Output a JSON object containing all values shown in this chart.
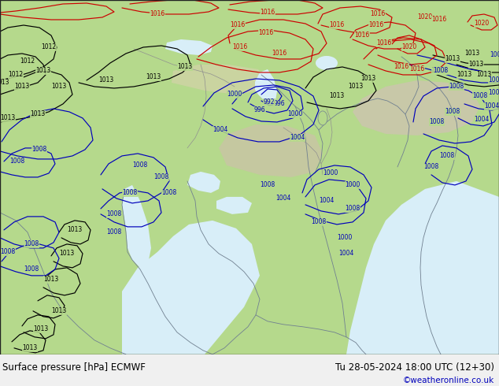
{
  "title_left": "Surface pressure [hPa] ECMWF",
  "title_right": "Tu 28-05-2024 18:00 UTC (12+30)",
  "credit": "©weatheronline.co.uk",
  "land_color": "#b5d98c",
  "water_color": "#d8eef8",
  "highland_color": "#c8c8a8",
  "bottom_bar_color": "#f0f0f0",
  "black": "#000000",
  "blue": "#0000bb",
  "red": "#cc0000",
  "gray": "#888888",
  "figsize": [
    6.34,
    4.9
  ],
  "dpi": 100
}
